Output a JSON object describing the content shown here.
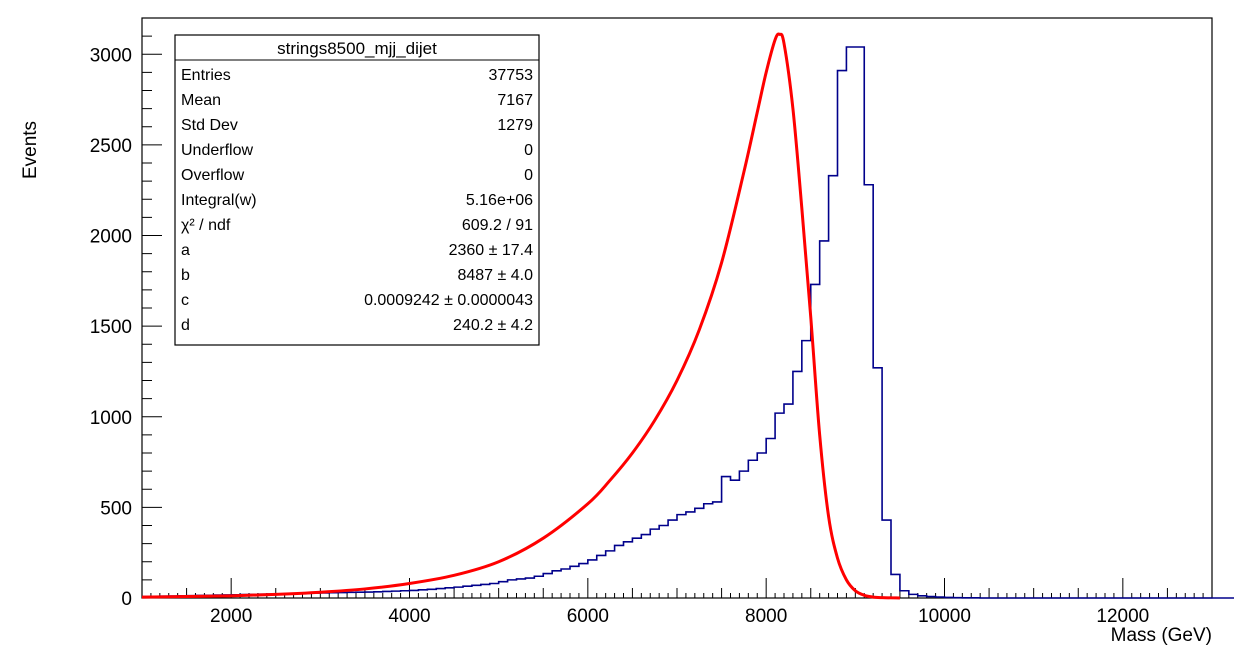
{
  "chart_data": {
    "type": "line",
    "xlabel": "Mass (GeV)",
    "ylabel": "Events",
    "xlim": [
      1000,
      13000
    ],
    "ylim": [
      0,
      3200
    ],
    "x_tick_labels": [
      "2000",
      "4000",
      "6000",
      "8000",
      "10000",
      "12000"
    ],
    "x_tick_values": [
      2000,
      4000,
      6000,
      8000,
      10000,
      12000
    ],
    "y_tick_labels": [
      "0",
      "500",
      "1000",
      "1500",
      "2000",
      "2500",
      "3000"
    ],
    "y_tick_values": [
      0,
      500,
      1000,
      1500,
      2000,
      2500,
      3000
    ],
    "grid": false,
    "series": [
      {
        "kind": "histogram",
        "color": "#00008b",
        "bin_width": 100,
        "bin_edges_start": 1000,
        "values": [
          8,
          9,
          10,
          11,
          12,
          13,
          14,
          15,
          16,
          17,
          18,
          19,
          20,
          21,
          22,
          23,
          24,
          25,
          26,
          27,
          28,
          29,
          30,
          31,
          32,
          33,
          34,
          36,
          38,
          40,
          42,
          45,
          48,
          52,
          56,
          60,
          65,
          70,
          75,
          80,
          90,
          100,
          105,
          110,
          120,
          135,
          150,
          160,
          175,
          190,
          210,
          235,
          260,
          290,
          310,
          330,
          350,
          380,
          400,
          430,
          460,
          475,
          495,
          520,
          530,
          670,
          650,
          700,
          760,
          800,
          880,
          1020,
          1070,
          1250,
          1420,
          1730,
          1970,
          2330,
          2910,
          3040,
          3040,
          2280,
          1270,
          430,
          130,
          40,
          20,
          12,
          8,
          5,
          3,
          2,
          1,
          1,
          0,
          0,
          0,
          0,
          0,
          0,
          0,
          0,
          0,
          0,
          0,
          0,
          0,
          0,
          0,
          0,
          0,
          0,
          0,
          0,
          0,
          0,
          0,
          0,
          0,
          0,
          0,
          0,
          0,
          0
        ]
      },
      {
        "kind": "fit",
        "color": "#ff0000",
        "x": [
          1000,
          1500,
          2000,
          2500,
          3000,
          3500,
          4000,
          4500,
          5000,
          5500,
          6000,
          6250,
          6500,
          6750,
          7000,
          7250,
          7500,
          7750,
          7900,
          8000,
          8100,
          8150,
          8200,
          8300,
          8400,
          8500,
          8600,
          8700,
          8800,
          8900,
          9000,
          9100,
          9200,
          9300,
          9500
        ],
        "y": [
          5,
          8,
          12,
          20,
          32,
          50,
          80,
          125,
          200,
          330,
          520,
          650,
          800,
          980,
          1200,
          1480,
          1850,
          2350,
          2680,
          2900,
          3080,
          3110,
          3060,
          2700,
          2150,
          1550,
          900,
          450,
          220,
          100,
          40,
          15,
          5,
          2,
          0
        ]
      }
    ],
    "stats_box": {
      "position": "top-left",
      "title": "strings8500_mjj_dijet",
      "rows": [
        {
          "label": "Entries",
          "value": "37753"
        },
        {
          "label": "Mean",
          "value": "7167"
        },
        {
          "label": "Std Dev",
          "value": "1279"
        },
        {
          "label": "Underflow",
          "value": "0"
        },
        {
          "label": "Overflow",
          "value": "0"
        },
        {
          "label": "Integral(w)",
          "value": "5.16e+06"
        },
        {
          "label": "χ² / ndf",
          "value": "609.2 / 91"
        },
        {
          "label": "a",
          "value": "2360 ± 17.4"
        },
        {
          "label": "b",
          "value": "8487 ± 4.0"
        },
        {
          "label": "c",
          "value": "0.0009242 ± 0.0000043"
        },
        {
          "label": "d",
          "value": "240.2 ± 4.2"
        }
      ]
    }
  }
}
